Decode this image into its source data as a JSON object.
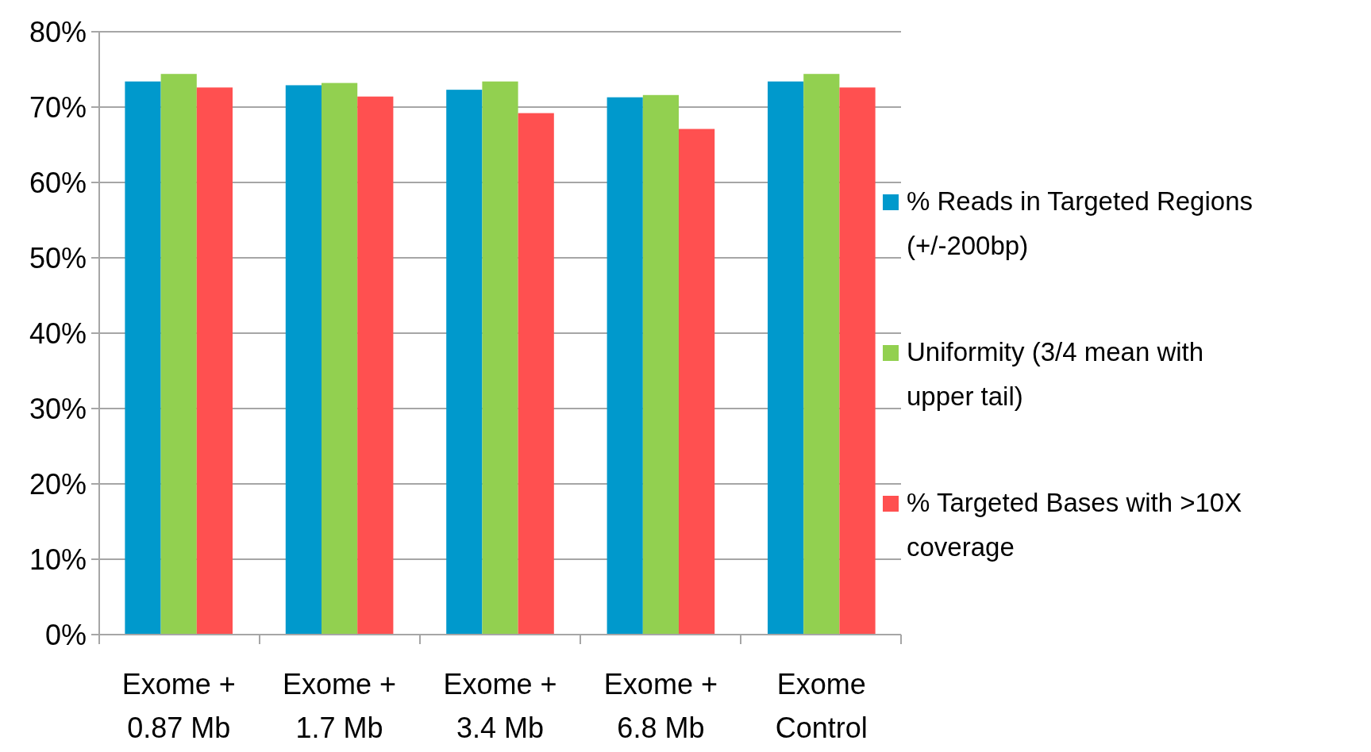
{
  "chart_data": {
    "type": "bar",
    "categories": [
      "Exome + 0.87 Mb",
      "Exome + 1.7 Mb",
      "Exome + 3.4 Mb",
      "Exome + 6.8 Mb",
      "Exome Control"
    ],
    "series": [
      {
        "name": "% Reads in Targeted Regions (+/-200bp)",
        "color": "#0099cc",
        "values": [
          73.4,
          72.9,
          72.3,
          71.3,
          73.4
        ]
      },
      {
        "name": "Uniformity (3/4 mean with upper tail)",
        "color": "#92d050",
        "values": [
          74.4,
          73.2,
          73.4,
          71.6,
          74.4
        ]
      },
      {
        "name": "% Targeted Bases with >10X coverage",
        "color": "#ff5050",
        "values": [
          72.6,
          71.4,
          69.2,
          67.1,
          72.6
        ]
      }
    ],
    "ylim": [
      0,
      80
    ],
    "yticks": [
      {
        "value": 0,
        "label": "0%"
      },
      {
        "value": 10,
        "label": "10%"
      },
      {
        "value": 20,
        "label": "20%"
      },
      {
        "value": 30,
        "label": "30%"
      },
      {
        "value": 40,
        "label": "40%"
      },
      {
        "value": 50,
        "label": "50%"
      },
      {
        "value": 60,
        "label": "60%"
      },
      {
        "value": 70,
        "label": "70%"
      },
      {
        "value": 80,
        "label": "80%"
      }
    ],
    "grid": true,
    "legend": "right"
  }
}
